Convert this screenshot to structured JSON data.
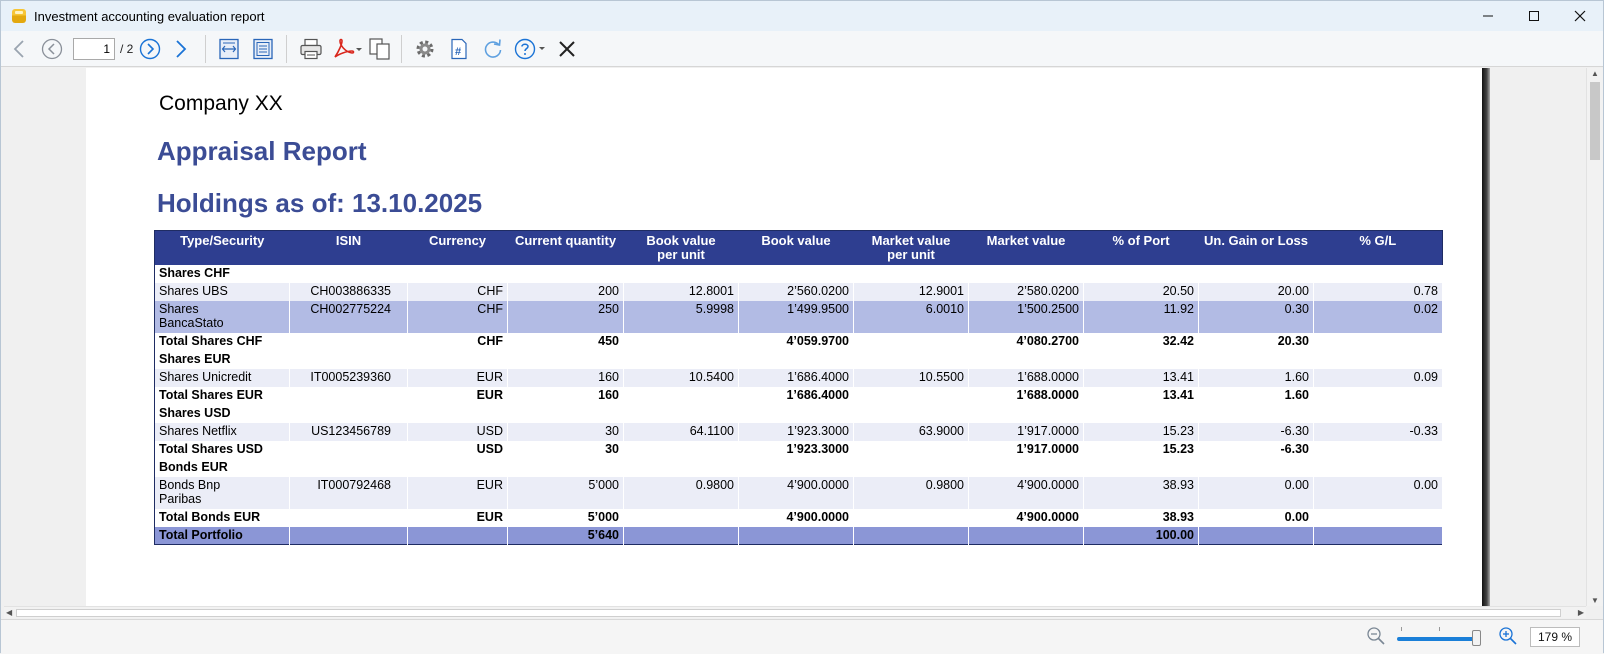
{
  "window": {
    "title": "Investment accounting evaluation report",
    "minimize": "—",
    "maximize": "☐",
    "close": "✕"
  },
  "toolbar": {
    "page_current": "1",
    "page_total": "/ 2"
  },
  "statusbar": {
    "zoom": "179 %"
  },
  "report": {
    "company": "Company XX",
    "title": "Appraisal Report",
    "subtitle": "Holdings as of: 13.10.2025",
    "columns": [
      "Type/Security",
      "ISIN",
      "Currency",
      "Current quantity",
      "Book value\nper unit",
      "Book value",
      "Market value\nper unit",
      "Market value",
      "% of Port",
      "Un. Gain or Loss",
      "% G/L"
    ],
    "rows": [
      {
        "kind": "group",
        "cells": [
          "Shares CHF",
          "",
          "",
          "",
          "",
          "",
          "",
          "",
          "",
          "",
          ""
        ]
      },
      {
        "kind": "alt",
        "cells": [
          "Shares UBS",
          "CH003886335",
          "CHF",
          "200",
          "12.8001",
          "2’560.0200",
          "12.9001",
          "2’580.0200",
          "20.50",
          "20.00",
          "0.78"
        ]
      },
      {
        "kind": "sel",
        "cells": [
          "Shares\nBancaStato",
          "CH002775224",
          "CHF",
          "250",
          "5.9998",
          "1’499.9500",
          "6.0010",
          "1’500.2500",
          "11.92",
          "0.30",
          "0.02"
        ]
      },
      {
        "kind": "total",
        "cells": [
          "Total Shares CHF",
          "",
          "CHF",
          "450",
          "",
          "4’059.9700",
          "",
          "4’080.2700",
          "32.42",
          "20.30",
          ""
        ]
      },
      {
        "kind": "group",
        "cells": [
          "Shares EUR",
          "",
          "",
          "",
          "",
          "",
          "",
          "",
          "",
          "",
          ""
        ]
      },
      {
        "kind": "alt",
        "cells": [
          "Shares Unicredit",
          "IT0005239360",
          "EUR",
          "160",
          "10.5400",
          "1’686.4000",
          "10.5500",
          "1’688.0000",
          "13.41",
          "1.60",
          "0.09"
        ]
      },
      {
        "kind": "total",
        "cells": [
          "Total Shares EUR",
          "",
          "EUR",
          "160",
          "",
          "1’686.4000",
          "",
          "1’688.0000",
          "13.41",
          "1.60",
          ""
        ]
      },
      {
        "kind": "group",
        "cells": [
          "Shares USD",
          "",
          "",
          "",
          "",
          "",
          "",
          "",
          "",
          "",
          ""
        ]
      },
      {
        "kind": "alt",
        "cells": [
          "Shares Netflix",
          "US123456789",
          "USD",
          "30",
          "64.1100",
          "1’923.3000",
          "63.9000",
          "1’917.0000",
          "15.23",
          "-6.30",
          "-0.33"
        ]
      },
      {
        "kind": "total",
        "cells": [
          "Total Shares USD",
          "",
          "USD",
          "30",
          "",
          "1’923.3000",
          "",
          "1’917.0000",
          "15.23",
          "-6.30",
          ""
        ]
      },
      {
        "kind": "group",
        "cells": [
          "Bonds EUR",
          "",
          "",
          "",
          "",
          "",
          "",
          "",
          "",
          "",
          ""
        ]
      },
      {
        "kind": "alt",
        "cells": [
          "Bonds Bnp\nParibas",
          "IT000792468",
          "EUR",
          "5’000",
          "0.9800",
          "4’900.0000",
          "0.9800",
          "4’900.0000",
          "38.93",
          "0.00",
          "0.00"
        ]
      },
      {
        "kind": "total",
        "cells": [
          "Total Bonds EUR",
          "",
          "EUR",
          "5’000",
          "",
          "4’900.0000",
          "",
          "4’900.0000",
          "38.93",
          "0.00",
          ""
        ]
      },
      {
        "kind": "grand",
        "cells": [
          "Total Portfolio",
          "",
          "",
          "5’640",
          "",
          "",
          "",
          "",
          "100.00",
          "",
          ""
        ]
      }
    ]
  }
}
